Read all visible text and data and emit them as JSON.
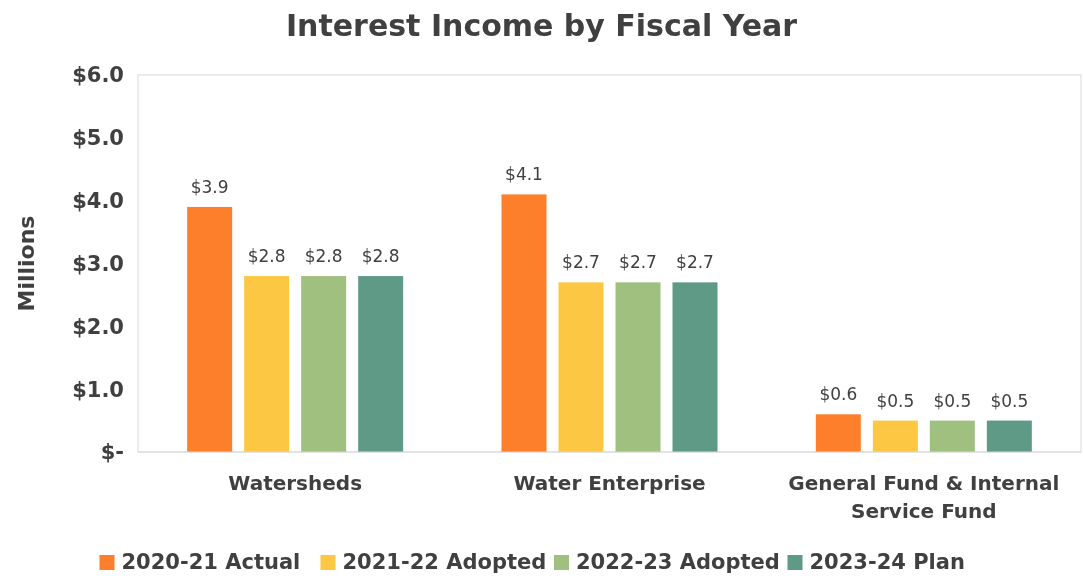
{
  "chart_data": {
    "type": "bar",
    "title": "Interest Income by Fiscal Year",
    "ylabel": "Millions",
    "categories": [
      "Watersheds",
      "Water Enterprise",
      "General Fund & Internal Service Fund"
    ],
    "series": [
      {
        "name": "2020-21 Actual",
        "color": "#fd7f2c",
        "values": [
          3.9,
          4.1,
          0.6
        ],
        "value_labels": [
          "$3.9",
          "$4.1",
          "$0.6"
        ]
      },
      {
        "name": "2021-22 Adopted",
        "color": "#fcc844",
        "values": [
          2.8,
          2.7,
          0.5
        ],
        "value_labels": [
          "$2.8",
          "$2.7",
          "$0.5"
        ]
      },
      {
        "name": "2022-23 Adopted",
        "color": "#a0c080",
        "values": [
          2.8,
          2.7,
          0.5
        ],
        "value_labels": [
          "$2.8",
          "$2.7",
          "$0.5"
        ]
      },
      {
        "name": "2023-24 Plan",
        "color": "#5f9a86",
        "values": [
          2.8,
          2.7,
          0.5
        ],
        "value_labels": [
          "$2.8",
          "$2.7",
          "$0.5"
        ]
      }
    ],
    "ylim": [
      0,
      6
    ],
    "yticks": [
      {
        "value": 0,
        "label": "$-"
      },
      {
        "value": 1,
        "label": "$1.0"
      },
      {
        "value": 2,
        "label": "$2.0"
      },
      {
        "value": 3,
        "label": "$3.0"
      },
      {
        "value": 4,
        "label": "$4.0"
      },
      {
        "value": 5,
        "label": "$5.0"
      },
      {
        "value": 6,
        "label": "$6.0"
      }
    ],
    "grid": false,
    "legend": "bottom"
  }
}
